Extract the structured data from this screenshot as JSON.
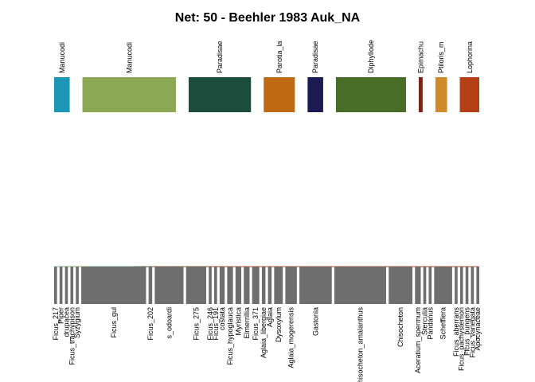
{
  "title": "Net: 50 - Beehler 1983 Auk_NA",
  "colors": {
    "lower_box": "#6e6e6e",
    "background": "#ffffff"
  },
  "chart_data": {
    "type": "bipartite-network",
    "higher_level": [
      {
        "label": "Manucodi",
        "color": "#1b96b5",
        "weight": 2
      },
      {
        "label": "Manucodi",
        "color": "#8ba955",
        "weight": 12
      },
      {
        "label": "Paradisae",
        "color": "#1b4c3c",
        "weight": 8
      },
      {
        "label": "Parotia_la",
        "color": "#bf6a12",
        "weight": 4
      },
      {
        "label": "Paradisae",
        "color": "#1c1a52",
        "weight": 2
      },
      {
        "label": "Diphyllode",
        "color": "#476d27",
        "weight": 9
      },
      {
        "label": "Epimachu",
        "color": "#7a2413",
        "weight": 0.5
      },
      {
        "label": "Ptiloris_m",
        "color": "#d08a2a",
        "weight": 1.5
      },
      {
        "label": "Lophorina",
        "color": "#b53f14",
        "weight": 2.5
      }
    ],
    "lower_level": [
      {
        "label": "Ficus_217",
        "weight": 0.4
      },
      {
        "label": "Piper",
        "weight": 0.4
      },
      {
        "label": "_drupacea",
        "weight": 0.4
      },
      {
        "label": "Ficus_trachypison",
        "weight": 0.4
      },
      {
        "label": "Syzygium",
        "weight": 0.4
      },
      {
        "label": "Ficus_gul",
        "weight": 9
      },
      {
        "label": "Ficus_202",
        "weight": 0.5
      },
      {
        "label": "s_odoardi",
        "weight": 4
      },
      {
        "label": "Ficus_275",
        "weight": 2.8
      },
      {
        "label": "Ficus_246",
        "weight": 0.4
      },
      {
        "label": "Ficus_191",
        "weight": 0.4
      },
      {
        "label": "costata",
        "weight": 0.7
      },
      {
        "label": "Ficus_hypoglauca",
        "weight": 0.8
      },
      {
        "label": "Myristica",
        "weight": 0.8
      },
      {
        "label": "Elmerrillia",
        "weight": 0.8
      },
      {
        "label": "Ficus_371",
        "weight": 1.0
      },
      {
        "label": "Aglaia_libergiae",
        "weight": 0.5
      },
      {
        "label": "Aglaia",
        "weight": 0.5
      },
      {
        "label": "Dysoxylum",
        "weight": 1.2
      },
      {
        "label": "Aglaia_mogerensis",
        "weight": 1.6
      },
      {
        "label": "Gastonia",
        "weight": 4.5
      },
      {
        "label": "Chisocheton_amalanthus",
        "weight": 7.2
      },
      {
        "label": "Chisocheton",
        "weight": 3.3
      },
      {
        "label": "Aceratium_spermum",
        "weight": 0.8
      },
      {
        "label": "Sterculia",
        "weight": 0.4
      },
      {
        "label": "Pandanus",
        "weight": 0.4
      },
      {
        "label": "Schefflera",
        "weight": 2.5
      },
      {
        "label": "Ficus_aberrans",
        "weight": 0.4
      },
      {
        "label": "Ficus_pachystemon",
        "weight": 0.4
      },
      {
        "label": "Ficus_pungens",
        "weight": 0.4
      },
      {
        "label": "Ficus_variegata",
        "weight": 0.4
      },
      {
        "label": "Apocynaceae",
        "weight": 0.4
      }
    ],
    "links": [
      [
        0,
        0,
        0.5
      ],
      [
        0,
        2,
        0.3
      ],
      [
        0,
        5,
        0.8
      ],
      [
        0,
        8,
        0.4
      ],
      [
        0,
        13,
        0.3
      ],
      [
        0,
        19,
        0.3
      ],
      [
        0,
        21,
        0.4
      ],
      [
        1,
        0,
        0.3
      ],
      [
        1,
        1,
        0.3
      ],
      [
        1,
        3,
        0.3
      ],
      [
        1,
        4,
        0.3
      ],
      [
        1,
        5,
        6
      ],
      [
        1,
        6,
        0.3
      ],
      [
        1,
        7,
        2
      ],
      [
        1,
        8,
        0.6
      ],
      [
        1,
        9,
        0.2
      ],
      [
        1,
        10,
        0.2
      ],
      [
        1,
        11,
        0.3
      ],
      [
        1,
        14,
        0.3
      ],
      [
        1,
        15,
        0.3
      ],
      [
        1,
        18,
        0.3
      ],
      [
        1,
        20,
        0.6
      ],
      [
        1,
        22,
        0.4
      ],
      [
        1,
        26,
        0.3
      ],
      [
        2,
        5,
        0.5
      ],
      [
        2,
        7,
        0.8
      ],
      [
        2,
        8,
        1
      ],
      [
        2,
        11,
        0.2
      ],
      [
        2,
        12,
        0.3
      ],
      [
        2,
        13,
        0.3
      ],
      [
        2,
        14,
        0.2
      ],
      [
        2,
        15,
        0.3
      ],
      [
        2,
        16,
        0.2
      ],
      [
        2,
        19,
        0.3
      ],
      [
        2,
        20,
        0.6
      ],
      [
        2,
        21,
        2.5
      ],
      [
        2,
        22,
        0.5
      ],
      [
        2,
        26,
        0.3
      ],
      [
        3,
        5,
        0.4
      ],
      [
        3,
        7,
        0.3
      ],
      [
        3,
        8,
        0.3
      ],
      [
        3,
        11,
        0.2
      ],
      [
        3,
        13,
        0.2
      ],
      [
        3,
        15,
        0.2
      ],
      [
        3,
        17,
        0.2
      ],
      [
        3,
        18,
        0.3
      ],
      [
        3,
        20,
        1.2
      ],
      [
        3,
        21,
        0.6
      ],
      [
        3,
        22,
        0.4
      ],
      [
        3,
        26,
        0.3
      ],
      [
        4,
        5,
        0.2
      ],
      [
        4,
        8,
        0.2
      ],
      [
        4,
        12,
        0.2
      ],
      [
        4,
        16,
        0.2
      ],
      [
        4,
        18,
        0.2
      ],
      [
        4,
        20,
        0.3
      ],
      [
        4,
        21,
        0.3
      ],
      [
        4,
        22,
        0.2
      ],
      [
        4,
        24,
        0.2
      ],
      [
        4,
        26,
        0.2
      ],
      [
        5,
        5,
        0.4
      ],
      [
        5,
        7,
        0.5
      ],
      [
        5,
        8,
        0.3
      ],
      [
        5,
        12,
        0.2
      ],
      [
        5,
        14,
        0.3
      ],
      [
        5,
        15,
        0.2
      ],
      [
        5,
        18,
        0.3
      ],
      [
        5,
        19,
        0.4
      ],
      [
        5,
        20,
        1.3
      ],
      [
        5,
        21,
        3.2
      ],
      [
        5,
        22,
        1.2
      ],
      [
        5,
        23,
        0.3
      ],
      [
        5,
        26,
        0.8
      ],
      [
        6,
        8,
        0.1
      ],
      [
        6,
        13,
        0.1
      ],
      [
        6,
        19,
        0.1
      ],
      [
        6,
        26,
        0.1
      ],
      [
        7,
        11,
        0.2
      ],
      [
        7,
        15,
        0.2
      ],
      [
        7,
        20,
        0.3
      ],
      [
        7,
        22,
        0.2
      ],
      [
        7,
        25,
        0.2
      ],
      [
        7,
        26,
        0.3
      ],
      [
        8,
        6,
        0.2
      ],
      [
        8,
        8,
        0.2
      ],
      [
        8,
        12,
        0.2
      ],
      [
        8,
        14,
        0.2
      ],
      [
        8,
        16,
        0.2
      ],
      [
        8,
        18,
        0.2
      ],
      [
        8,
        20,
        0.3
      ],
      [
        8,
        22,
        0.4
      ],
      [
        8,
        23,
        0.3
      ],
      [
        8,
        26,
        0.4
      ],
      [
        8,
        27,
        0.1
      ],
      [
        8,
        28,
        0.1
      ],
      [
        8,
        29,
        0.1
      ],
      [
        8,
        30,
        0.1
      ],
      [
        8,
        31,
        0.1
      ]
    ]
  }
}
